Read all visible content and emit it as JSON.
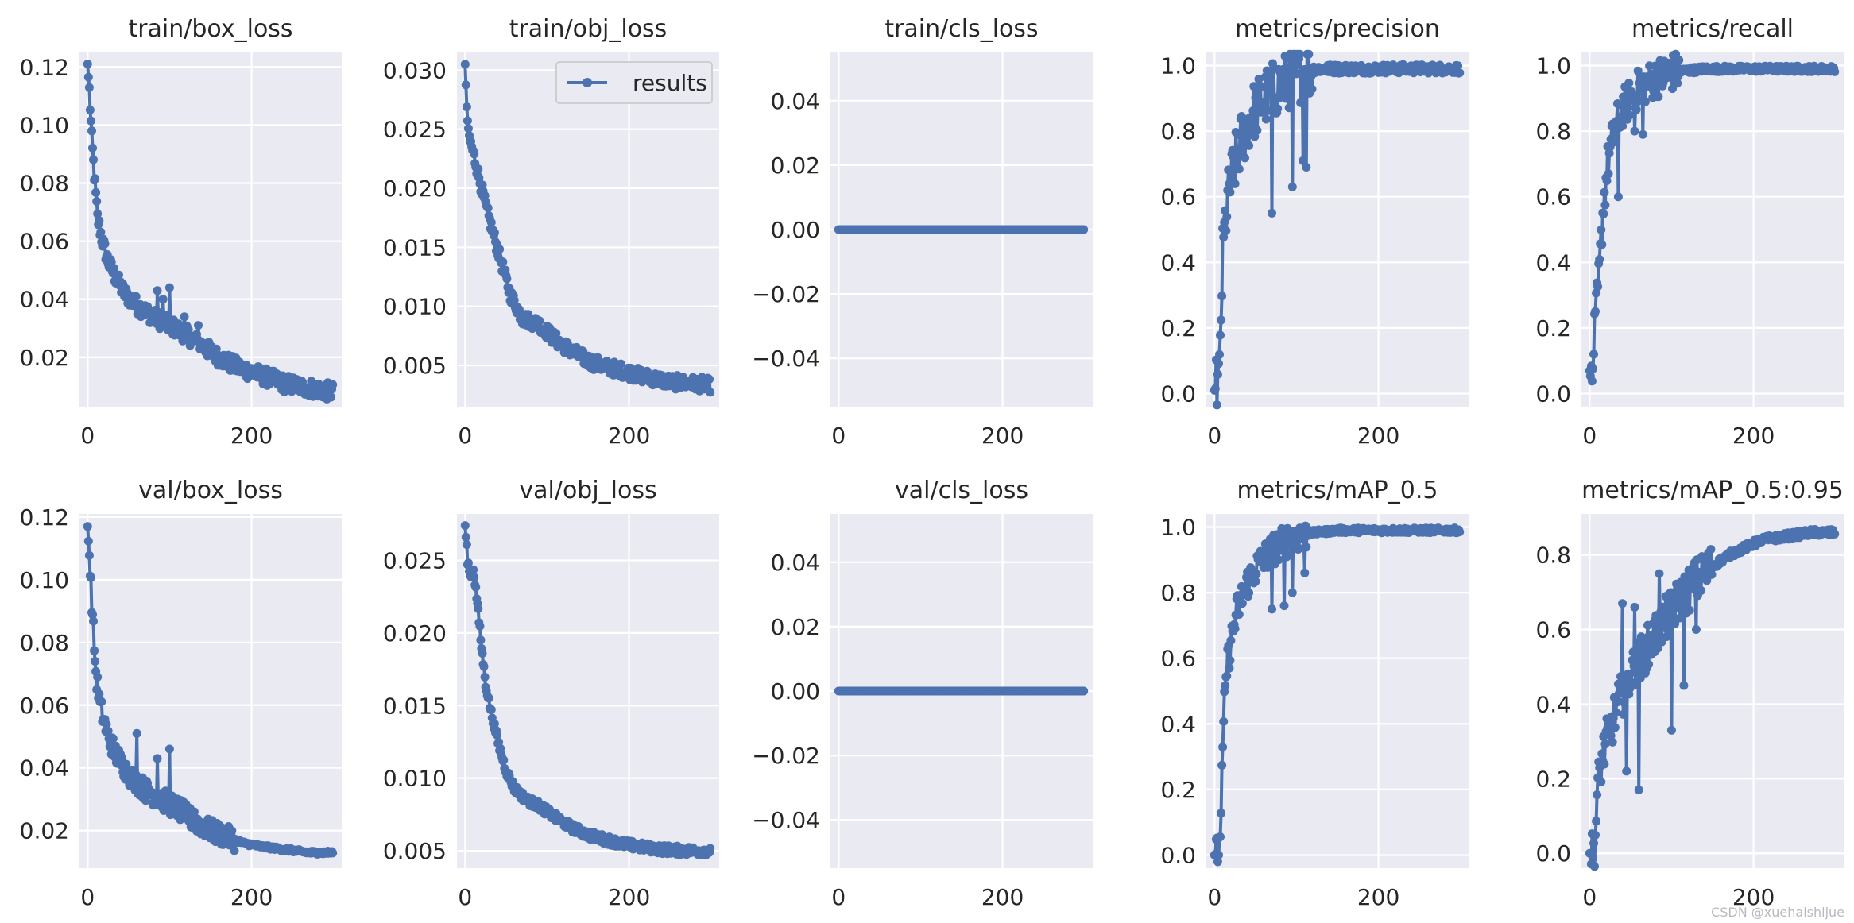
{
  "watermark": "CSDN @xuehaishijue",
  "legend_label": "results",
  "series_color": "#4C72B0",
  "panel_bg": "#EAEAF2",
  "chart_data": [
    {
      "type": "line",
      "title": "train/box_loss",
      "xlim": [
        -10,
        310
      ],
      "ylim": [
        0.003,
        0.125
      ],
      "yticks": [
        0.02,
        0.04,
        0.06,
        0.08,
        0.1,
        0.12
      ],
      "ytick_labels": [
        "0.02",
        "0.04",
        "0.06",
        "0.08",
        "0.10",
        "0.12"
      ],
      "xticks": [
        0,
        200
      ],
      "legend": false,
      "anchors": [
        [
          0,
          0.121
        ],
        [
          2,
          0.112
        ],
        [
          5,
          0.095
        ],
        [
          8,
          0.083
        ],
        [
          12,
          0.068
        ],
        [
          18,
          0.06
        ],
        [
          25,
          0.053
        ],
        [
          35,
          0.047
        ],
        [
          45,
          0.042
        ],
        [
          60,
          0.038
        ],
        [
          80,
          0.034
        ],
        [
          100,
          0.031
        ],
        [
          120,
          0.028
        ],
        [
          140,
          0.024
        ],
        [
          160,
          0.02
        ],
        [
          180,
          0.017
        ],
        [
          200,
          0.015
        ],
        [
          220,
          0.013
        ],
        [
          240,
          0.011
        ],
        [
          260,
          0.01
        ],
        [
          280,
          0.009
        ],
        [
          299,
          0.008
        ]
      ],
      "noise": 0.003,
      "spikes": [
        [
          85,
          0.043
        ],
        [
          92,
          0.04
        ],
        [
          100,
          0.044
        ],
        [
          118,
          0.034
        ],
        [
          135,
          0.031
        ]
      ]
    },
    {
      "type": "line",
      "title": "train/obj_loss",
      "xlim": [
        -10,
        310
      ],
      "ylim": [
        0.0015,
        0.0315
      ],
      "yticks": [
        0.005,
        0.01,
        0.015,
        0.02,
        0.025,
        0.03
      ],
      "ytick_labels": [
        "0.005",
        "0.010",
        "0.015",
        "0.020",
        "0.025",
        "0.030"
      ],
      "xticks": [
        0,
        200
      ],
      "legend": true,
      "anchors": [
        [
          0,
          0.0305
        ],
        [
          2,
          0.027
        ],
        [
          4,
          0.0245
        ],
        [
          8,
          0.0235
        ],
        [
          15,
          0.0215
        ],
        [
          25,
          0.0185
        ],
        [
          35,
          0.016
        ],
        [
          45,
          0.0135
        ],
        [
          55,
          0.011
        ],
        [
          70,
          0.009
        ],
        [
          90,
          0.0085
        ],
        [
          110,
          0.0072
        ],
        [
          130,
          0.0062
        ],
        [
          150,
          0.0054
        ],
        [
          170,
          0.0049
        ],
        [
          190,
          0.0046
        ],
        [
          210,
          0.0042
        ],
        [
          230,
          0.0039
        ],
        [
          250,
          0.0036
        ],
        [
          270,
          0.0035
        ],
        [
          290,
          0.0034
        ],
        [
          299,
          0.0033
        ]
      ],
      "noise": 0.0006,
      "spikes": []
    },
    {
      "type": "line",
      "title": "train/cls_loss",
      "xlim": [
        -10,
        310
      ],
      "ylim": [
        -0.055,
        0.055
      ],
      "yticks": [
        -0.04,
        -0.02,
        0.0,
        0.02,
        0.04
      ],
      "ytick_labels": [
        "−0.04",
        "−0.02",
        "0.00",
        "0.02",
        "0.04"
      ],
      "xticks": [
        0,
        200
      ],
      "legend": false,
      "anchors": [
        [
          0,
          0
        ],
        [
          299,
          0
        ]
      ],
      "noise": 0,
      "spikes": []
    },
    {
      "type": "line",
      "title": "metrics/precision",
      "xlim": [
        -10,
        310
      ],
      "ylim": [
        -0.04,
        1.04
      ],
      "yticks": [
        0.0,
        0.2,
        0.4,
        0.6,
        0.8,
        1.0
      ],
      "ytick_labels": [
        "0.0",
        "0.2",
        "0.4",
        "0.6",
        "0.8",
        "1.0"
      ],
      "xticks": [
        0,
        200
      ],
      "legend": false,
      "anchors": [
        [
          0,
          0.01
        ],
        [
          4,
          0.03
        ],
        [
          6,
          0.05
        ],
        [
          8,
          0.25
        ],
        [
          10,
          0.42
        ],
        [
          14,
          0.55
        ],
        [
          20,
          0.65
        ],
        [
          30,
          0.75
        ],
        [
          45,
          0.85
        ],
        [
          60,
          0.9
        ],
        [
          80,
          0.94
        ],
        [
          100,
          0.97
        ],
        [
          120,
          0.99
        ],
        [
          160,
          0.99
        ],
        [
          200,
          0.99
        ],
        [
          299,
          0.99
        ]
      ],
      "noise": 0.09,
      "noise_end": 120,
      "spikes": [
        [
          70,
          0.55
        ],
        [
          95,
          0.63
        ],
        [
          108,
          0.71
        ],
        [
          112,
          0.69
        ]
      ]
    },
    {
      "type": "line",
      "title": "metrics/recall",
      "xlim": [
        -10,
        310
      ],
      "ylim": [
        -0.04,
        1.04
      ],
      "yticks": [
        0.0,
        0.2,
        0.4,
        0.6,
        0.8,
        1.0
      ],
      "ytick_labels": [
        "0.0",
        "0.2",
        "0.4",
        "0.6",
        "0.8",
        "1.0"
      ],
      "xticks": [
        0,
        200
      ],
      "legend": false,
      "anchors": [
        [
          0,
          0.07
        ],
        [
          3,
          0.02
        ],
        [
          5,
          0.15
        ],
        [
          8,
          0.25
        ],
        [
          12,
          0.38
        ],
        [
          16,
          0.55
        ],
        [
          22,
          0.7
        ],
        [
          30,
          0.8
        ],
        [
          40,
          0.87
        ],
        [
          60,
          0.93
        ],
        [
          80,
          0.96
        ],
        [
          100,
          0.98
        ],
        [
          140,
          0.99
        ],
        [
          299,
          0.99
        ]
      ],
      "noise": 0.06,
      "noise_end": 110,
      "spikes": [
        [
          35,
          0.6
        ],
        [
          55,
          0.8
        ],
        [
          65,
          0.79
        ]
      ]
    },
    {
      "type": "line",
      "title": "val/box_loss",
      "xlim": [
        -10,
        310
      ],
      "ylim": [
        0.008,
        0.121
      ],
      "yticks": [
        0.02,
        0.04,
        0.06,
        0.08,
        0.1,
        0.12
      ],
      "ytick_labels": [
        "0.02",
        "0.04",
        "0.06",
        "0.08",
        "0.10",
        "0.12"
      ],
      "xticks": [
        0,
        200
      ],
      "legend": false,
      "anchors": [
        [
          0,
          0.117
        ],
        [
          3,
          0.103
        ],
        [
          6,
          0.088
        ],
        [
          10,
          0.07
        ],
        [
          15,
          0.06
        ],
        [
          25,
          0.05
        ],
        [
          35,
          0.044
        ],
        [
          50,
          0.038
        ],
        [
          70,
          0.033
        ],
        [
          90,
          0.03
        ],
        [
          110,
          0.027
        ],
        [
          130,
          0.023
        ],
        [
          150,
          0.02
        ],
        [
          170,
          0.018
        ],
        [
          190,
          0.016
        ],
        [
          210,
          0.015
        ],
        [
          240,
          0.014
        ],
        [
          270,
          0.013
        ],
        [
          299,
          0.013
        ]
      ],
      "noise": 0.0035,
      "noise_end": 180,
      "spikes": [
        [
          60,
          0.051
        ],
        [
          85,
          0.043
        ],
        [
          100,
          0.046
        ],
        [
          130,
          0.026
        ]
      ]
    },
    {
      "type": "line",
      "title": "val/obj_loss",
      "xlim": [
        -10,
        310
      ],
      "ylim": [
        0.0038,
        0.0282
      ],
      "yticks": [
        0.005,
        0.01,
        0.015,
        0.02,
        0.025
      ],
      "ytick_labels": [
        "0.005",
        "0.010",
        "0.015",
        "0.020",
        "0.025"
      ],
      "xticks": [
        0,
        200
      ],
      "legend": false,
      "anchors": [
        [
          0,
          0.0274
        ],
        [
          3,
          0.025
        ],
        [
          6,
          0.024
        ],
        [
          10,
          0.0245
        ],
        [
          15,
          0.022
        ],
        [
          20,
          0.019
        ],
        [
          25,
          0.0165
        ],
        [
          30,
          0.015
        ],
        [
          40,
          0.0125
        ],
        [
          50,
          0.0105
        ],
        [
          60,
          0.0093
        ],
        [
          75,
          0.0085
        ],
        [
          90,
          0.0081
        ],
        [
          110,
          0.0073
        ],
        [
          130,
          0.0066
        ],
        [
          150,
          0.0061
        ],
        [
          170,
          0.0058
        ],
        [
          190,
          0.0055
        ],
        [
          210,
          0.0053
        ],
        [
          240,
          0.0051
        ],
        [
          270,
          0.005
        ],
        [
          299,
          0.005
        ]
      ],
      "noise": 0.0003,
      "spikes": []
    },
    {
      "type": "line",
      "title": "val/cls_loss",
      "xlim": [
        -10,
        310
      ],
      "ylim": [
        -0.055,
        0.055
      ],
      "yticks": [
        -0.04,
        -0.02,
        0.0,
        0.02,
        0.04
      ],
      "ytick_labels": [
        "−0.04",
        "−0.02",
        "0.00",
        "0.02",
        "0.04"
      ],
      "xticks": [
        0,
        200
      ],
      "legend": false,
      "anchors": [
        [
          0,
          0
        ],
        [
          299,
          0
        ]
      ],
      "noise": 0,
      "spikes": []
    },
    {
      "type": "line",
      "title": "metrics/mAP_0.5",
      "xlim": [
        -10,
        310
      ],
      "ylim": [
        -0.04,
        1.04
      ],
      "yticks": [
        0.0,
        0.2,
        0.4,
        0.6,
        0.8,
        1.0
      ],
      "ytick_labels": [
        "0.0",
        "0.2",
        "0.4",
        "0.6",
        "0.8",
        "1.0"
      ],
      "xticks": [
        0,
        200
      ],
      "legend": false,
      "anchors": [
        [
          0,
          0.0
        ],
        [
          4,
          0.01
        ],
        [
          6,
          0.03
        ],
        [
          8,
          0.14
        ],
        [
          10,
          0.32
        ],
        [
          12,
          0.45
        ],
        [
          15,
          0.57
        ],
        [
          20,
          0.65
        ],
        [
          28,
          0.75
        ],
        [
          40,
          0.83
        ],
        [
          55,
          0.89
        ],
        [
          70,
          0.93
        ],
        [
          90,
          0.96
        ],
        [
          110,
          0.98
        ],
        [
          150,
          0.99
        ],
        [
          299,
          0.99
        ]
      ],
      "noise": 0.05,
      "noise_end": 115,
      "spikes": [
        [
          70,
          0.75
        ],
        [
          85,
          0.76
        ],
        [
          95,
          0.8
        ],
        [
          110,
          0.86
        ]
      ]
    },
    {
      "type": "line",
      "title": "metrics/mAP_0.5:0.95",
      "xlim": [
        -10,
        310
      ],
      "ylim": [
        -0.04,
        0.91
      ],
      "yticks": [
        0.0,
        0.2,
        0.4,
        0.6,
        0.8
      ],
      "ytick_labels": [
        "0.0",
        "0.2",
        "0.4",
        "0.6",
        "0.8"
      ],
      "xticks": [
        0,
        200
      ],
      "legend": false,
      "anchors": [
        [
          0,
          0.0
        ],
        [
          4,
          0.0
        ],
        [
          6,
          0.01
        ],
        [
          9,
          0.14
        ],
        [
          12,
          0.22
        ],
        [
          18,
          0.28
        ],
        [
          25,
          0.33
        ],
        [
          35,
          0.4
        ],
        [
          50,
          0.48
        ],
        [
          70,
          0.55
        ],
        [
          90,
          0.62
        ],
        [
          110,
          0.68
        ],
        [
          130,
          0.73
        ],
        [
          150,
          0.77
        ],
        [
          170,
          0.8
        ],
        [
          190,
          0.82
        ],
        [
          210,
          0.84
        ],
        [
          240,
          0.85
        ],
        [
          270,
          0.86
        ],
        [
          299,
          0.86
        ]
      ],
      "noise": 0.06,
      "noise_end": 150,
      "spikes": [
        [
          40,
          0.67
        ],
        [
          45,
          0.22
        ],
        [
          55,
          0.66
        ],
        [
          60,
          0.17
        ],
        [
          85,
          0.75
        ],
        [
          100,
          0.33
        ],
        [
          115,
          0.45
        ],
        [
          130,
          0.6
        ]
      ]
    }
  ]
}
